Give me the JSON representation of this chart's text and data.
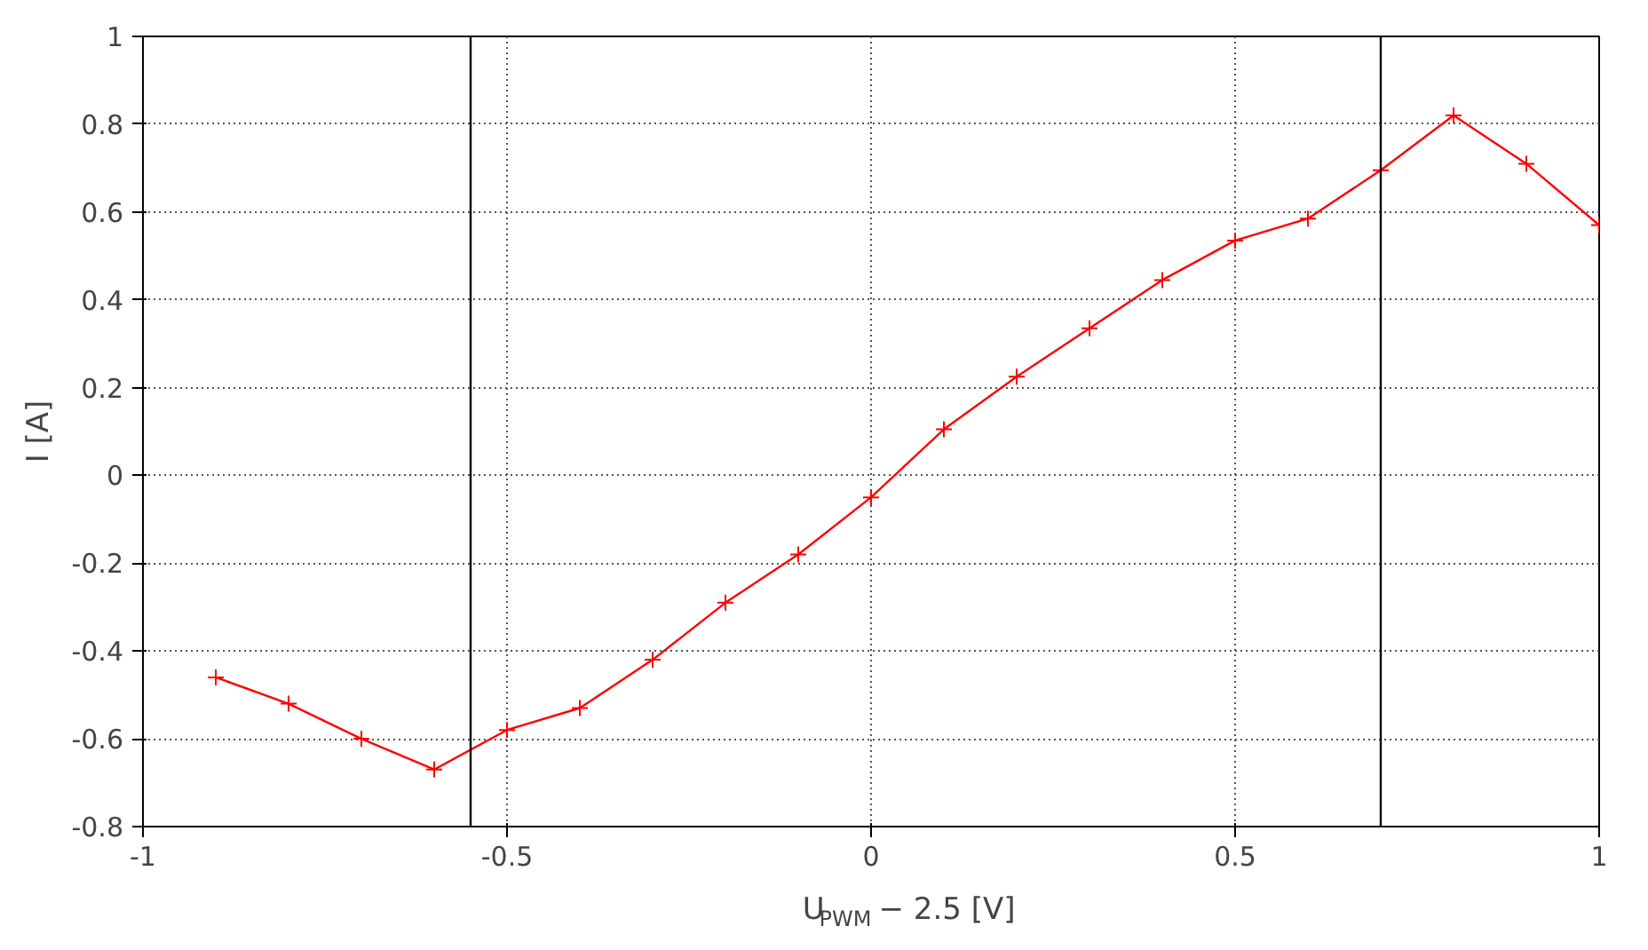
{
  "chart_data": {
    "type": "line",
    "xlabel": "U$_{PWM}$ − 2.5 [V]",
    "ylabel": "I [A]",
    "x": [
      -0.9,
      -0.8,
      -0.7,
      -0.6,
      -0.5,
      -0.4,
      -0.3,
      -0.2,
      -0.1,
      0,
      0.1,
      0.2,
      0.3,
      0.4,
      0.5,
      0.6,
      0.7,
      0.8,
      0.9,
      1.0
    ],
    "series": [
      {
        "color": "#ff0000",
        "values": [
          -0.46,
          -0.52,
          -0.6,
          -0.67,
          -0.58,
          -0.53,
          -0.42,
          -0.29,
          -0.18,
          -0.05,
          0.105,
          0.225,
          0.335,
          0.445,
          0.535,
          0.585,
          0.695,
          0.82,
          0.71,
          0.57
        ]
      }
    ],
    "xlim": [
      -1,
      1
    ],
    "ylim": [
      -0.8,
      1
    ],
    "xticks": [
      -1,
      -0.5,
      0,
      0.5,
      1
    ],
    "yticks": [
      -0.8,
      -0.6,
      -0.4,
      -0.2,
      0,
      0.2,
      0.4,
      0.6,
      0.8,
      1
    ],
    "ref_lines": [
      {
        "axis": "x",
        "value": -0.55,
        "color": "#000000"
      },
      {
        "axis": "x",
        "value": 0.7,
        "color": "#000000"
      }
    ],
    "grid": true,
    "marker": "cross",
    "line_style": "solid"
  }
}
